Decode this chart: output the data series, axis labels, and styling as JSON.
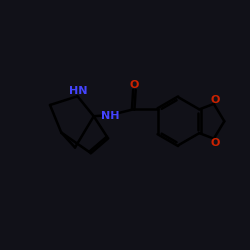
{
  "bg_color": "#111118",
  "bond_color": "#000000",
  "N_color": "#4444ff",
  "O_color": "#cc2200",
  "lw": 1.8,
  "fontsize": 8.0,
  "xlim": [
    0,
    10
  ],
  "ylim": [
    0,
    10
  ]
}
